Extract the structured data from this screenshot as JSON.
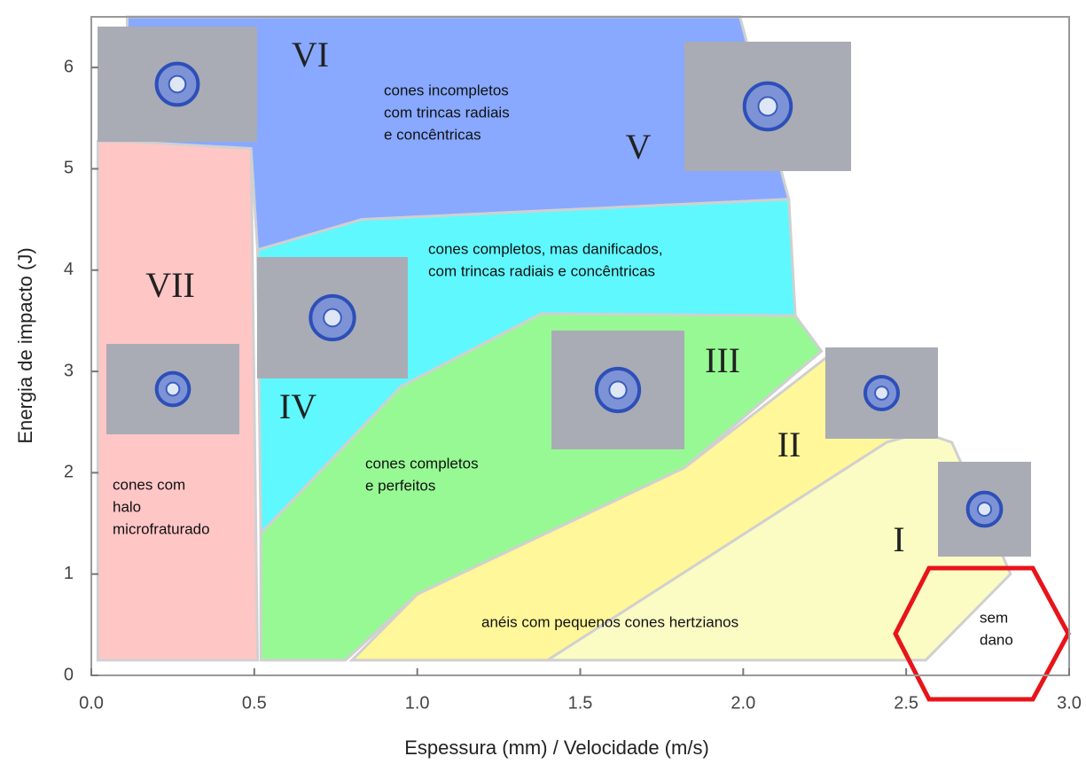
{
  "chart_data": {
    "type": "region-map",
    "x_label": "Espessura (mm) / Velocidade (m/s)",
    "y_label": "Energia de impacto (J)",
    "xlim": [
      0,
      3.0
    ],
    "ylim": [
      0,
      6.5
    ],
    "xticks": [
      {
        "value": 0,
        "label": "0.0"
      },
      0.5,
      {
        "value": 1,
        "label": "1.0"
      },
      1.5,
      {
        "value": 2,
        "label": "2.0"
      },
      2.5,
      {
        "value": 3,
        "label": "3.0"
      }
    ],
    "yticks": [
      0,
      1,
      2,
      3,
      4,
      5,
      6
    ],
    "regions": [
      {
        "color": "#ffc6c6",
        "x": [
          0.02,
          0.51,
          0.49,
          0.45,
          0.02
        ],
        "y": [
          0.15,
          0.15,
          5.2,
          5.27,
          5.27
        ]
      },
      {
        "color": "#88a9ff",
        "x": [
          0.11,
          1.99,
          2.14,
          0.83,
          0.51,
          0.49,
          0.11
        ],
        "y": [
          6.5,
          6.5,
          4.7,
          4.5,
          4.2,
          5.2,
          5.27
        ]
      },
      {
        "color": "#5ff8ff",
        "x": [
          0.51,
          0.83,
          2.14,
          2.16,
          1.38,
          0.95,
          0.52
        ],
        "y": [
          4.2,
          4.5,
          4.7,
          3.55,
          3.57,
          2.85,
          1.4
        ]
      },
      {
        "color": "#97f994",
        "x": [
          0.52,
          0.95,
          1.38,
          2.16,
          2.24,
          1.82,
          1.0,
          0.78,
          0.52
        ],
        "y": [
          1.4,
          2.85,
          3.57,
          3.55,
          3.2,
          2.05,
          0.8,
          0.15,
          0.15
        ]
      },
      {
        "color": "#fff799",
        "x": [
          0.8,
          1.0,
          1.82,
          2.26,
          2.55,
          2.44,
          1.4
        ],
        "y": [
          0.15,
          0.8,
          2.05,
          3.15,
          2.4,
          2.3,
          0.15
        ]
      },
      {
        "color": "#fbfbc4",
        "x": [
          1.4,
          2.44,
          2.55,
          2.64,
          2.78,
          2.82,
          2.56
        ],
        "y": [
          0.15,
          2.3,
          2.4,
          2.3,
          1.3,
          1.0,
          0.15
        ]
      }
    ],
    "region_labels": [
      "VII",
      "VI",
      "V",
      "IV",
      "III",
      "II",
      "I"
    ],
    "descriptions": [
      [
        "cones incompletos",
        "com trincas radiais",
        "e concêntricas"
      ],
      [
        "cones completos, mas danificados,",
        "com trincas radiais e concêntricas"
      ],
      [
        "cones completos",
        "e perfeitos"
      ],
      [
        "cones com",
        "halo",
        "microfraturado"
      ],
      [
        "anéis com pequenos cones hertzianos"
      ],
      [
        "sem",
        "dano"
      ]
    ]
  }
}
